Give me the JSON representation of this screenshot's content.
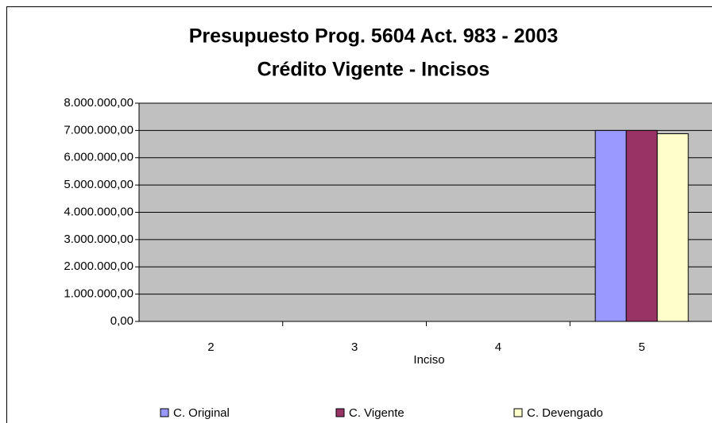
{
  "chart_data": {
    "type": "bar",
    "title": "Presupuesto Prog. 5604 Act. 983 - 2003",
    "subtitle": "Crédito Vigente - Incisos",
    "x_label": "Inciso",
    "categories": [
      "2",
      "3",
      "4",
      "5"
    ],
    "series": [
      {
        "name": "C. Original",
        "color": "#9999ff",
        "values": [
          0,
          0,
          0,
          7000000
        ]
      },
      {
        "name": "C. Vigente",
        "color": "#993366",
        "values": [
          0,
          0,
          0,
          7000000
        ]
      },
      {
        "name": "C. Devengado",
        "color": "#ffffcc",
        "values": [
          0,
          0,
          0,
          6880000
        ]
      }
    ],
    "ylim": [
      0,
      8000000
    ],
    "yticks": [
      {
        "value": 0,
        "label": "0,00"
      },
      {
        "value": 1000000,
        "label": "1.000.000,00"
      },
      {
        "value": 2000000,
        "label": "2.000.000,00"
      },
      {
        "value": 3000000,
        "label": "3.000.000,00"
      },
      {
        "value": 4000000,
        "label": "4.000.000,00"
      },
      {
        "value": 5000000,
        "label": "5.000.000,00"
      },
      {
        "value": 6000000,
        "label": "6.000.000,00"
      },
      {
        "value": 7000000,
        "label": "7.000.000,00"
      },
      {
        "value": 8000000,
        "label": "8.000.000,00"
      }
    ],
    "grid": true,
    "legend": "bottom"
  }
}
